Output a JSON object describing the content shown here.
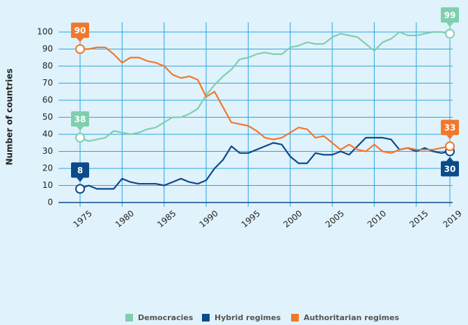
{
  "chart_data": {
    "type": "line",
    "y_label": "Number of countries",
    "x": [
      1975,
      1976,
      1977,
      1978,
      1979,
      1980,
      1981,
      1982,
      1983,
      1984,
      1985,
      1986,
      1987,
      1988,
      1989,
      1990,
      1991,
      1992,
      1993,
      1994,
      1995,
      1996,
      1997,
      1998,
      1999,
      2000,
      2001,
      2002,
      2003,
      2004,
      2005,
      2006,
      2007,
      2008,
      2009,
      2010,
      2011,
      2012,
      2013,
      2014,
      2015,
      2016,
      2017,
      2018,
      2019
    ],
    "xlim": [
      1975,
      2019
    ],
    "xticks": [
      1975,
      1980,
      1985,
      1990,
      1995,
      2000,
      2005,
      2010,
      2015,
      2019
    ],
    "ylim": [
      0,
      100
    ],
    "yticks": [
      0,
      10,
      20,
      30,
      40,
      50,
      60,
      70,
      80,
      90,
      100
    ],
    "grid": true,
    "legend": "bottom",
    "series": [
      {
        "name": "Democracies",
        "color": "#7fcfae",
        "values": [
          38,
          36,
          37,
          38,
          42,
          41,
          40,
          41,
          43,
          44,
          47,
          50,
          50,
          52,
          55,
          63,
          69,
          74,
          78,
          84,
          85,
          87,
          88,
          87,
          87,
          91,
          92,
          94,
          93,
          93,
          97,
          99,
          98,
          97,
          93,
          89,
          94,
          96,
          100,
          98,
          98,
          99,
          100,
          100,
          99
        ]
      },
      {
        "name": "Hybrid regimes",
        "color": "#0b4a8b",
        "values": [
          8,
          10,
          8,
          8,
          8,
          14,
          12,
          11,
          11,
          11,
          10,
          12,
          14,
          12,
          11,
          13,
          20,
          25,
          33,
          29,
          29,
          31,
          33,
          35,
          34,
          27,
          23,
          23,
          29,
          28,
          28,
          30,
          28,
          33,
          38,
          38,
          38,
          37,
          31,
          32,
          30,
          32,
          30,
          29,
          30
        ]
      },
      {
        "name": "Authoritarian regimes",
        "color": "#f0782c",
        "values": [
          90,
          90,
          91,
          91,
          87,
          82,
          85,
          85,
          83,
          82,
          80,
          75,
          73,
          74,
          72,
          62,
          65,
          56,
          47,
          46,
          45,
          42,
          38,
          37,
          38,
          41,
          44,
          43,
          38,
          39,
          35,
          31,
          34,
          31,
          30,
          34,
          30,
          29,
          31,
          32,
          31,
          31,
          31,
          32,
          33
        ]
      }
    ]
  }
}
